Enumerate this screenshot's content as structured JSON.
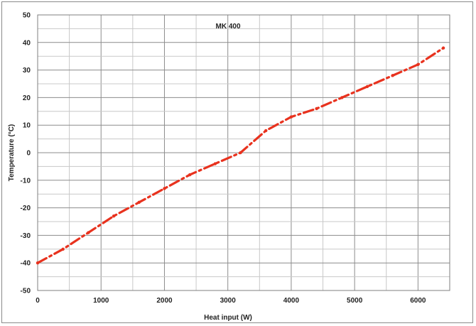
{
  "chart_data": {
    "type": "line",
    "title": "MK 400",
    "xlabel": "Heat input (W)",
    "ylabel": "Temperature (°C)",
    "xlim": [
      0,
      6500
    ],
    "ylim": [
      -50,
      50
    ],
    "x_ticks": [
      0,
      1000,
      2000,
      3000,
      4000,
      5000,
      6000
    ],
    "x_tick_labels": [
      "0",
      "1000",
      "2000",
      "3000",
      "4000",
      "5000",
      "6000"
    ],
    "y_ticks": [
      -50,
      -40,
      -30,
      -20,
      -10,
      0,
      10,
      20,
      30,
      40,
      50
    ],
    "y_tick_labels": [
      "-50",
      "-40",
      "-30",
      "-20",
      "-10",
      "0",
      "10",
      "20",
      "30",
      "40",
      "50"
    ],
    "grid": true,
    "legend": "none",
    "series": [
      {
        "color": "#e8321e",
        "x": [
          0,
          400,
          800,
          1200,
          1600,
          2000,
          2400,
          2800,
          3200,
          3600,
          4000,
          4400,
          4800,
          5200,
          5600,
          6000,
          6400
        ],
        "y": [
          -40,
          -35,
          -29,
          -23,
          -18,
          -13,
          -8,
          -4,
          0,
          8,
          13,
          16,
          20,
          24,
          28,
          32,
          38
        ]
      }
    ]
  }
}
